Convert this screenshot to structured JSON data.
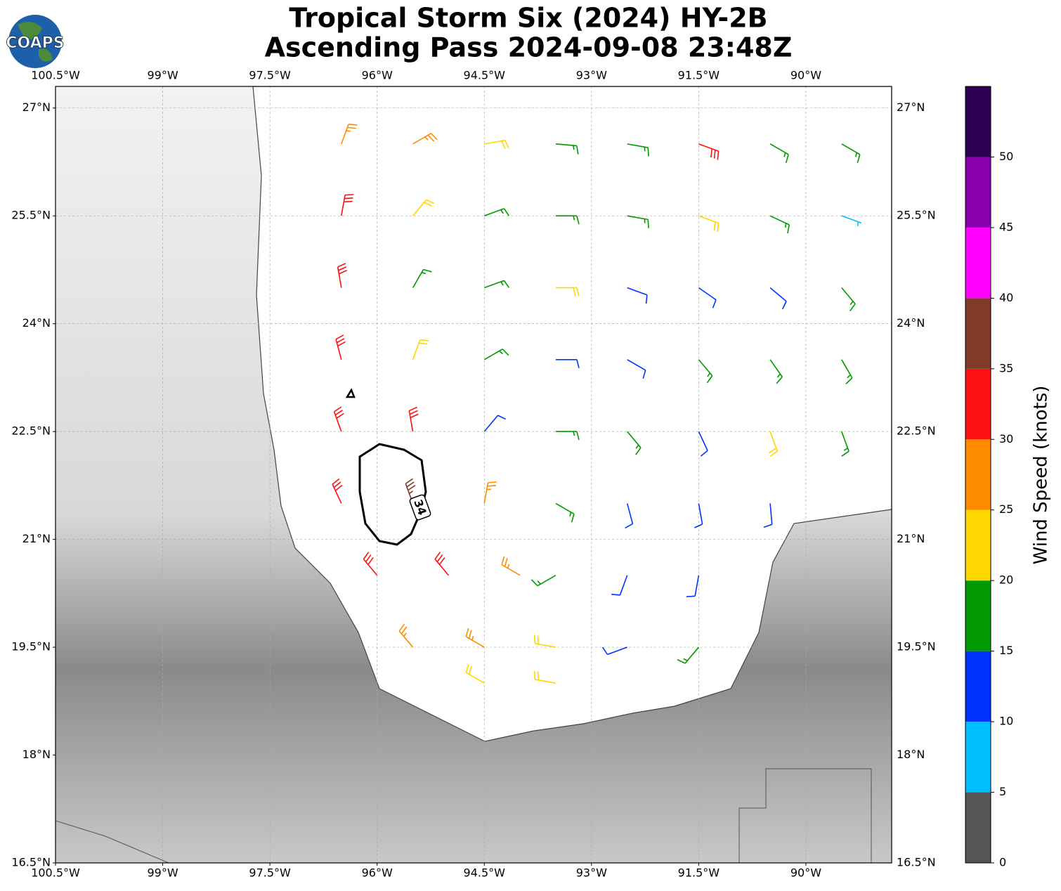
{
  "logo": "COAPS",
  "chart_data": {
    "type": "wind-barbs",
    "title": [
      "Tropical Storm Six (2024) HY-2B",
      "Ascending Pass 2024-09-08 23:48Z"
    ],
    "xlim": [
      -100.5,
      -88.8
    ],
    "ylim": [
      16.5,
      27.3
    ],
    "xticks": [
      {
        "value": -100.5,
        "label": "100.5°W"
      },
      {
        "value": -99,
        "label": "99°W"
      },
      {
        "value": -97.5,
        "label": "97.5°W"
      },
      {
        "value": -96,
        "label": "96°W"
      },
      {
        "value": -94.5,
        "label": "94.5°W"
      },
      {
        "value": -93,
        "label": "93°W"
      },
      {
        "value": -91.5,
        "label": "91.5°W"
      },
      {
        "value": -90,
        "label": "90°W"
      }
    ],
    "yticks": [
      {
        "value": 16.5,
        "label": "16.5°N"
      },
      {
        "value": 18,
        "label": "18°N"
      },
      {
        "value": 19.5,
        "label": "19.5°N"
      },
      {
        "value": 21,
        "label": "21°N"
      },
      {
        "value": 22.5,
        "label": "22.5°N"
      },
      {
        "value": 24,
        "label": "24°N"
      },
      {
        "value": 25.5,
        "label": "25.5°N"
      },
      {
        "value": 27,
        "label": "27°N"
      }
    ],
    "grid": true,
    "contour_label": "34",
    "barbs": {
      "lon": [
        -96.5,
        -95.5,
        -94.5,
        -93.5,
        -92.5,
        -91.5,
        -90.5,
        -89.5,
        -96.5,
        -95.5,
        -94.5,
        -93.5,
        -92.5,
        -91.5,
        -90.5,
        -89.5,
        -96.5,
        -95.5,
        -94.5,
        -93.5,
        -92.5,
        -91.5,
        -90.5,
        -89.5,
        -96.5,
        -95.5,
        -94.5,
        -93.5,
        -92.5,
        -91.5,
        -90.5,
        -89.5,
        -96.5,
        -95.5,
        -94.5,
        -93.5,
        -92.5,
        -91.5,
        -90.5,
        -89.5,
        -96.5,
        -95.5,
        -94.5,
        -93.5,
        -92.5,
        -91.5,
        -90.5,
        -96,
        -95,
        -94,
        -93.5,
        -92.5,
        -91.5,
        -95.5,
        -94.5,
        -93.5,
        -92.5,
        -91.5,
        -94.5,
        -93.5
      ],
      "lat": [
        26.5,
        26.5,
        26.5,
        26.5,
        26.5,
        26.5,
        26.5,
        26.5,
        25.5,
        25.5,
        25.5,
        25.5,
        25.5,
        25.5,
        25.5,
        25.5,
        24.5,
        24.5,
        24.5,
        24.5,
        24.5,
        24.5,
        24.5,
        24.5,
        23.5,
        23.5,
        23.5,
        23.5,
        23.5,
        23.5,
        23.5,
        23.5,
        22.5,
        22.5,
        22.5,
        22.5,
        22.5,
        22.5,
        22.5,
        22.5,
        21.5,
        21.5,
        21.5,
        21.5,
        21.5,
        21.5,
        21.5,
        20.5,
        20.5,
        20.5,
        20.5,
        20.5,
        20.5,
        19.5,
        19.5,
        19.5,
        19.5,
        19.5,
        19,
        19
      ],
      "speed": [
        27,
        27,
        22,
        17,
        17,
        32,
        18,
        17,
        32,
        22,
        17,
        17,
        18,
        22,
        17,
        8,
        32,
        17,
        18,
        21,
        13,
        13,
        13,
        16,
        33,
        23,
        17,
        13,
        13,
        16,
        17,
        18,
        33,
        32,
        12,
        16,
        16,
        13,
        22,
        18,
        32,
        37,
        27,
        17,
        13,
        12,
        12,
        31,
        32,
        26,
        16,
        13,
        13,
        27,
        28,
        22,
        12,
        17,
        23,
        22
      ],
      "direction": [
        20,
        60,
        80,
        95,
        100,
        110,
        120,
        120,
        10,
        40,
        70,
        90,
        100,
        110,
        115,
        110,
        350,
        30,
        70,
        90,
        110,
        125,
        130,
        140,
        345,
        20,
        60,
        90,
        120,
        140,
        145,
        150,
        340,
        350,
        40,
        90,
        140,
        155,
        160,
        160,
        335,
        340,
        10,
        120,
        165,
        170,
        175,
        320,
        320,
        300,
        240,
        200,
        190,
        320,
        300,
        280,
        250,
        220,
        300,
        280
      ]
    },
    "colorbar": {
      "label": "Wind Speed (knots)",
      "bounds": [
        0,
        5,
        10,
        15,
        20,
        25,
        30,
        35,
        40,
        45,
        50,
        55
      ],
      "colors": [
        "#555555",
        "#00bfff",
        "#0033ff",
        "#009900",
        "#ffd700",
        "#ff8c00",
        "#ff1010",
        "#7f3a28",
        "#ff00ff",
        "#8800aa",
        "#2e0054"
      ],
      "ticks": [
        0,
        5,
        10,
        15,
        20,
        25,
        30,
        35,
        40,
        45,
        50
      ]
    }
  }
}
